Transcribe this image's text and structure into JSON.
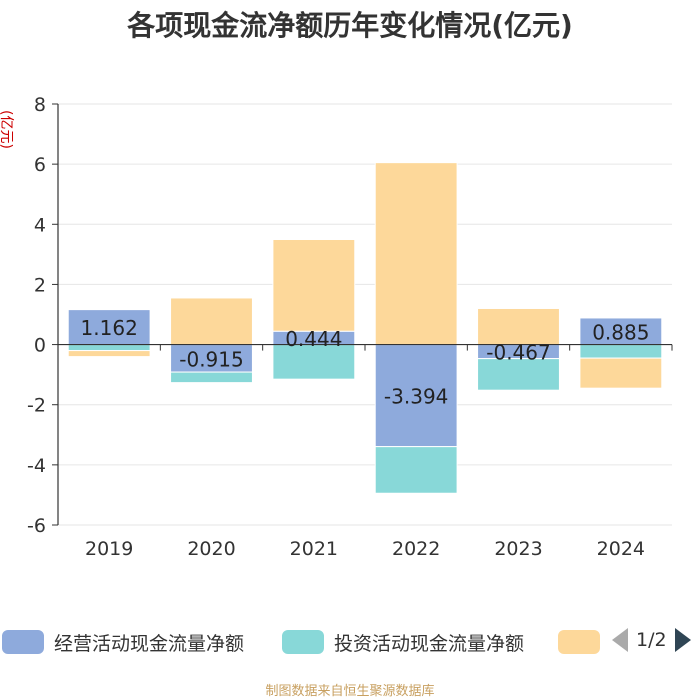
{
  "chart_data": {
    "type": "bar",
    "stacked": true,
    "title": "各项现金流净额历年变化情况(亿元)",
    "ylabel": "(亿元)",
    "ylim": [
      -6,
      8
    ],
    "yticks": [
      -6,
      -4,
      -2,
      0,
      2,
      4,
      6,
      8
    ],
    "categories": [
      "2019",
      "2020",
      "2021",
      "2022",
      "2023",
      "2024"
    ],
    "series": [
      {
        "name": "经营活动现金流量净额",
        "color": "#8eaadc",
        "values": [
          1.162,
          -0.915,
          0.444,
          -3.394,
          -0.467,
          0.885
        ],
        "labels": [
          "1.162",
          "-0.915",
          "0.444",
          "-3.394",
          "-0.467",
          "0.885"
        ]
      },
      {
        "name": "投资活动现金流量净额",
        "color": "#88d8d8",
        "values": [
          -0.2,
          -0.35,
          -1.15,
          -1.55,
          -1.05,
          -0.45
        ]
      },
      {
        "name": "",
        "color": "#fdd89a",
        "values": [
          -0.2,
          1.55,
          3.05,
          6.05,
          1.2,
          -1.0
        ]
      }
    ],
    "legend_position": "bottom",
    "grid": true
  },
  "legend": {
    "items": [
      "经营活动现金流量净额",
      "投资活动现金流量净额",
      ""
    ],
    "pager": "1/2"
  },
  "source": "制图数据来自恒生聚源数据库"
}
